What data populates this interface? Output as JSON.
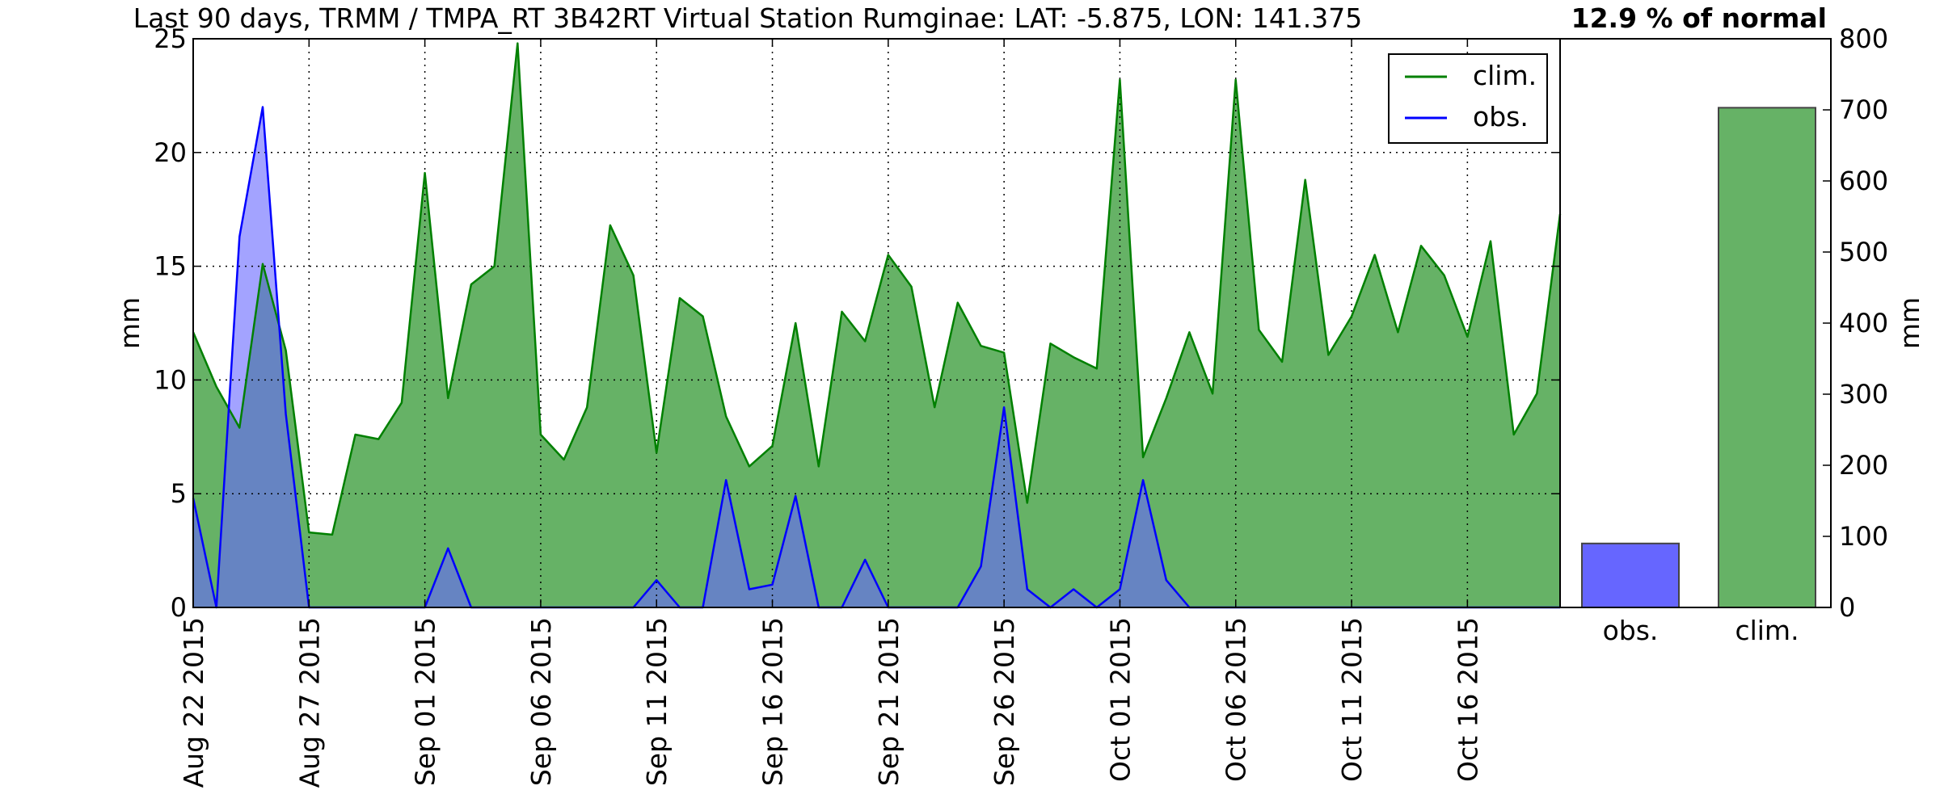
{
  "title": "Last 90 days, TRMM / TMPA_RT 3B42RT Virtual Station Rumginae: LAT: -5.875, LON: 141.375",
  "percent_label": "12.9 % of normal",
  "colors": {
    "clim_line": "#008000",
    "clim_fill": "#66b266",
    "obs_line": "#0000ff",
    "obs_fill": "#6666ff",
    "obs_bar": "#6666ff",
    "clim_bar": "#66b266"
  },
  "chart_data": [
    {
      "type": "area",
      "ylabel": "mm",
      "ylim": [
        0,
        25
      ],
      "yticks": [
        0,
        5,
        10,
        15,
        20,
        25
      ],
      "xlim": [
        "2015-08-22",
        "2015-10-20"
      ],
      "xtick_labels": [
        "Aug 22 2015",
        "Aug 27 2015",
        "Sep 01 2015",
        "Sep 06 2015",
        "Sep 11 2015",
        "Sep 16 2015",
        "Sep 21 2015",
        "Sep 26 2015",
        "Oct 01 2015",
        "Oct 06 2015",
        "Oct 11 2015",
        "Oct 16 2015"
      ],
      "grid": true,
      "legend": {
        "position": "top-right",
        "entries": [
          "clim.",
          "obs."
        ]
      },
      "x": [
        "2015-08-22",
        "2015-08-23",
        "2015-08-24",
        "2015-08-25",
        "2015-08-26",
        "2015-08-27",
        "2015-08-28",
        "2015-08-29",
        "2015-08-30",
        "2015-08-31",
        "2015-09-01",
        "2015-09-02",
        "2015-09-03",
        "2015-09-04",
        "2015-09-05",
        "2015-09-06",
        "2015-09-07",
        "2015-09-08",
        "2015-09-09",
        "2015-09-10",
        "2015-09-11",
        "2015-09-12",
        "2015-09-13",
        "2015-09-14",
        "2015-09-15",
        "2015-09-16",
        "2015-09-17",
        "2015-09-18",
        "2015-09-19",
        "2015-09-20",
        "2015-09-21",
        "2015-09-22",
        "2015-09-23",
        "2015-09-24",
        "2015-09-25",
        "2015-09-26",
        "2015-09-27",
        "2015-09-28",
        "2015-09-29",
        "2015-09-30",
        "2015-10-01",
        "2015-10-02",
        "2015-10-03",
        "2015-10-04",
        "2015-10-05",
        "2015-10-06",
        "2015-10-07",
        "2015-10-08",
        "2015-10-09",
        "2015-10-10",
        "2015-10-11",
        "2015-10-12",
        "2015-10-13",
        "2015-10-14",
        "2015-10-15",
        "2015-10-16",
        "2015-10-17",
        "2015-10-18",
        "2015-10-19",
        "2015-10-20"
      ],
      "series": [
        {
          "name": "clim.",
          "values": [
            12.1,
            9.7,
            7.9,
            15.1,
            11.3,
            3.3,
            3.2,
            7.6,
            7.4,
            9.0,
            19.1,
            9.2,
            14.2,
            15.0,
            24.8,
            7.6,
            6.5,
            8.8,
            16.8,
            14.6,
            6.8,
            13.6,
            12.8,
            8.4,
            6.2,
            7.1,
            12.5,
            6.2,
            13.0,
            11.7,
            15.5,
            14.1,
            8.8,
            13.4,
            11.5,
            11.2,
            4.6,
            11.6,
            11.0,
            10.5,
            23.2,
            6.6,
            9.2,
            12.1,
            9.4,
            23.2,
            12.2,
            10.8,
            18.8,
            11.1,
            12.8,
            15.5,
            12.1,
            15.9,
            14.6,
            11.9,
            16.1,
            7.6,
            9.4,
            17.3
          ]
        },
        {
          "name": "obs.",
          "values": [
            4.8,
            0.0,
            16.3,
            22.0,
            8.5,
            0.0,
            0.0,
            0.0,
            0.0,
            0.0,
            0.0,
            2.6,
            0.0,
            0.0,
            0.0,
            0.0,
            0.0,
            0.0,
            0.0,
            0.0,
            1.2,
            0.0,
            0.0,
            5.6,
            0.8,
            1.0,
            4.9,
            0.0,
            0.0,
            2.1,
            0.0,
            0.0,
            0.0,
            0.0,
            1.8,
            8.8,
            0.8,
            0.0,
            0.8,
            0.0,
            0.8,
            5.6,
            1.2,
            0.0,
            0.0,
            0.0,
            0.0,
            0.0,
            0.0,
            0.0,
            0.0,
            0.0,
            0.0,
            0.0,
            0.0,
            0.0,
            0.0,
            0.0,
            0.0,
            0.0
          ]
        }
      ]
    },
    {
      "type": "bar",
      "categories": [
        "obs.",
        "clim."
      ],
      "values": [
        90,
        703
      ],
      "ylabel": "mm",
      "ylim": [
        0,
        800
      ],
      "yticks": [
        0,
        100,
        200,
        300,
        400,
        500,
        600,
        700,
        800
      ],
      "grid": false
    }
  ]
}
